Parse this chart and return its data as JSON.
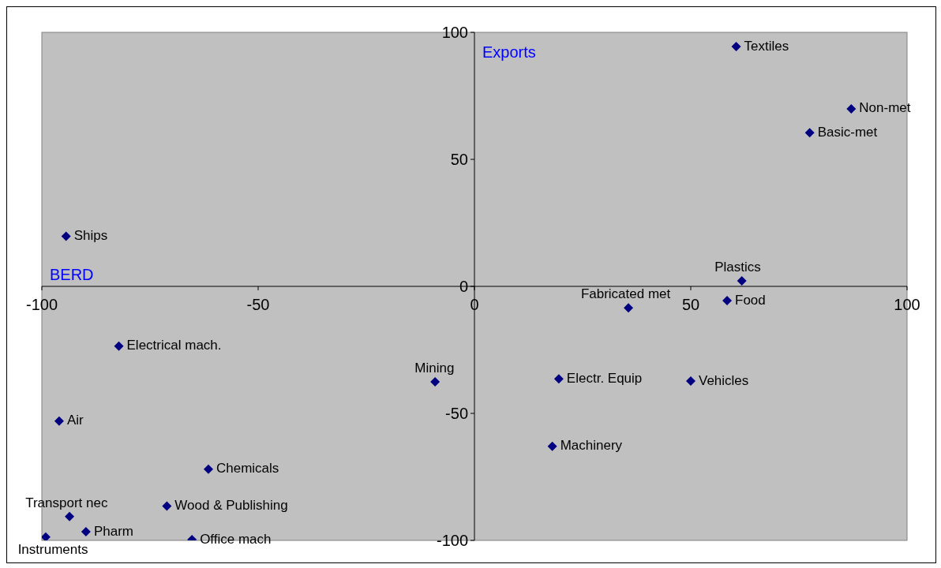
{
  "chart_data": {
    "type": "scatter",
    "xlabel": "BERD",
    "ylabel": "Exports",
    "x": [
      60.5,
      87.1,
      77.5,
      -94.4,
      61.8,
      35.6,
      58.4,
      -82.2,
      -9.1,
      19.5,
      50,
      -96,
      18,
      -61.5,
      -93.6,
      -71.1,
      -89.8,
      -65.3,
      -99.1
    ],
    "series": [
      {
        "color": "#000080",
        "values": [
          94.4,
          69.9,
          60.5,
          19.7,
          2.2,
          -8.5,
          -5.6,
          -23.5,
          -37.6,
          -36.4,
          -37.3,
          -53,
          -63,
          -72,
          -90.6,
          -86.5,
          -96.6,
          -99.7,
          -98.7
        ]
      }
    ],
    "annotations": [
      {
        "text": "Textiles",
        "x": 60.5,
        "y": 94.4
      },
      {
        "text": "Non-met",
        "x": 87.1,
        "y": 69.9
      },
      {
        "text": "Basic-met",
        "x": 77.5,
        "y": 60.5
      },
      {
        "text": "Ships",
        "x": -94.4,
        "y": 19.7
      },
      {
        "text": "Plastics",
        "x": 61.8,
        "y": 2.2
      },
      {
        "text": "Fabricated met",
        "x": 35.6,
        "y": -8.5
      },
      {
        "text": "Food",
        "x": 58.4,
        "y": -5.6
      },
      {
        "text": "Electrical mach.",
        "x": -82.2,
        "y": -23.5
      },
      {
        "text": "Mining",
        "x": -9.1,
        "y": -37.6
      },
      {
        "text": "Electr. Equip",
        "x": 19.5,
        "y": -36.4
      },
      {
        "text": "Vehicles",
        "x": 50,
        "y": -37.3
      },
      {
        "text": "Air",
        "x": -96,
        "y": -53
      },
      {
        "text": "Machinery",
        "x": 18,
        "y": -63
      },
      {
        "text": "Chemicals",
        "x": -61.5,
        "y": -72
      },
      {
        "text": "Transport nec",
        "x": -93.6,
        "y": -90.6
      },
      {
        "text": "Wood & Publishing",
        "x": -71.1,
        "y": -86.5
      },
      {
        "text": "Pharm",
        "x": -89.8,
        "y": -96.6
      },
      {
        "text": "Office mach",
        "x": -65.3,
        "y": -99.7
      },
      {
        "text": "Instruments",
        "x": -99.1,
        "y": -98.7
      }
    ],
    "xlim": [
      -100,
      100
    ],
    "ylim": [
      -100,
      100
    ],
    "xticks": [
      -100,
      -50,
      0,
      50,
      100
    ],
    "yticks": [
      -100,
      -50,
      0,
      50,
      100
    ],
    "grid": false,
    "legend": false,
    "marker": "diamond"
  }
}
